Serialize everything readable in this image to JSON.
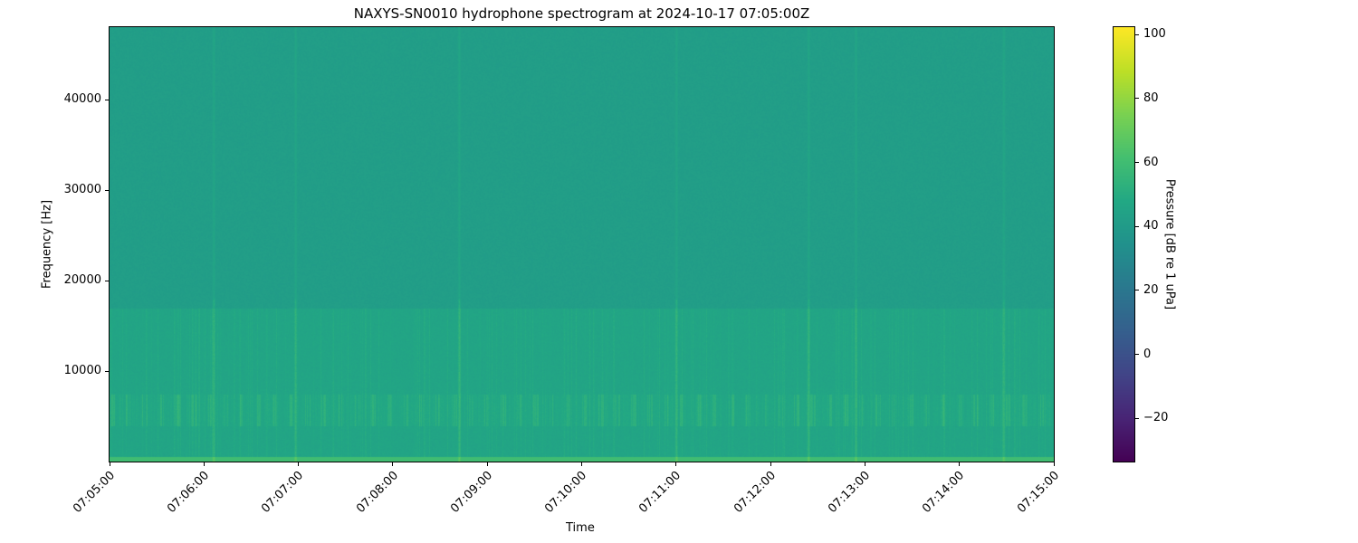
{
  "chart_data": {
    "type": "heatmap",
    "title": "NAXYS-SN0010 hydrophone spectrogram at 2024-10-17 07:05:00Z",
    "xlabel": "Time",
    "ylabel": "Frequency [Hz]",
    "x_ticks": [
      "07:05:00",
      "07:06:00",
      "07:07:00",
      "07:08:00",
      "07:09:00",
      "07:10:00",
      "07:11:00",
      "07:12:00",
      "07:13:00",
      "07:14:00",
      "07:15:00"
    ],
    "xlim": [
      "07:05:00",
      "07:15:00"
    ],
    "y_ticks": [
      10000,
      20000,
      30000,
      40000
    ],
    "ylim": [
      0,
      48000
    ],
    "colormap": "viridis",
    "colorbar": {
      "label": "Pressure [dB re 1 uPa]",
      "ticks": [
        -20,
        0,
        20,
        40,
        60,
        80,
        100
      ],
      "range": [
        -33.5,
        102.3
      ]
    },
    "levels_db": {
      "background_high_freq": 42,
      "band_0_17000_hz": 46,
      "band_4000_7500_hz_peaks": 60,
      "lowest_band_below_500_hz": 60,
      "broadband_transients": 58
    },
    "transient_times": [
      "07:06:06",
      "07:06:58",
      "07:08:42",
      "07:11:00",
      "07:12:24",
      "07:12:54",
      "07:14:28"
    ],
    "grid": false
  }
}
